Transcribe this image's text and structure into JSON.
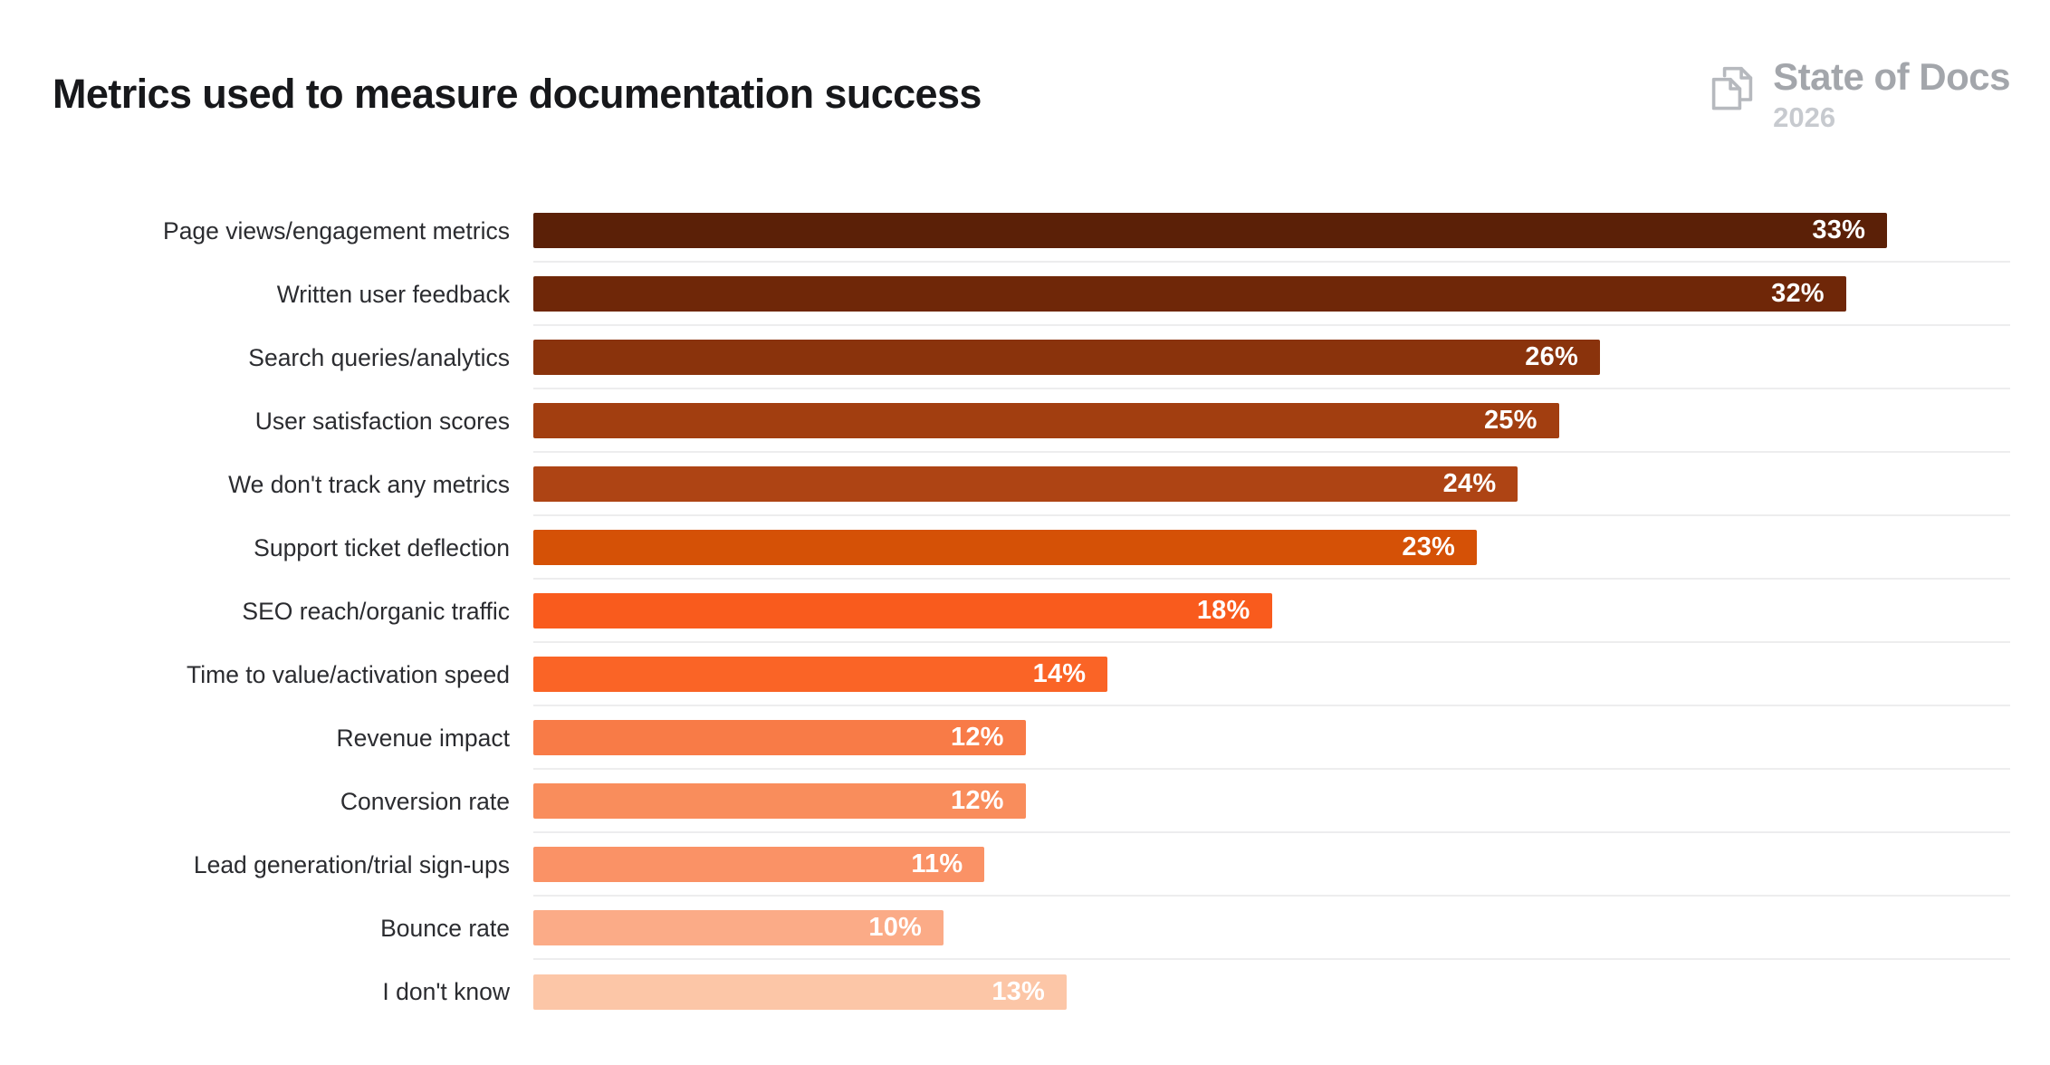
{
  "header": {
    "title": "Metrics used to measure documentation success",
    "logo": {
      "icon": "pages-icon",
      "name": "State of Docs",
      "year": "2026"
    }
  },
  "chart_data": {
    "type": "bar",
    "orientation": "horizontal",
    "title": "Metrics used to measure documentation success",
    "xlabel": "",
    "ylabel": "",
    "xlim": [
      0,
      36
    ],
    "grid": "row-separators-only",
    "legend": "none",
    "value_label_position": "inside-end",
    "value_label_color": "#ffffff",
    "categories": [
      "Page views/engagement metrics",
      "Written user feedback",
      "Search queries/analytics",
      "User satisfaction scores",
      "We don't track any metrics",
      "Support ticket deflection",
      "SEO reach/organic traffic",
      "Time to value/activation speed",
      "Revenue impact",
      "Conversion rate",
      "Lead generation/trial sign-ups",
      "Bounce rate",
      "I don't know"
    ],
    "values": [
      33,
      32,
      26,
      25,
      24,
      23,
      18,
      14,
      12,
      12,
      11,
      10,
      13
    ],
    "value_labels": [
      "33%",
      "32%",
      "26%",
      "25%",
      "24%",
      "23%",
      "18%",
      "14%",
      "12%",
      "12%",
      "11%",
      "10%",
      "13%"
    ],
    "bar_colors": [
      "#5b2007",
      "#6f2708",
      "#8a330c",
      "#a23e10",
      "#ae4414",
      "#d55106",
      "#f95b1d",
      "#fa6426",
      "#f87b47",
      "#f98d5c",
      "#fa9266",
      "#fbab87",
      "#fcc6a7"
    ],
    "separator_color": "#ededee"
  }
}
